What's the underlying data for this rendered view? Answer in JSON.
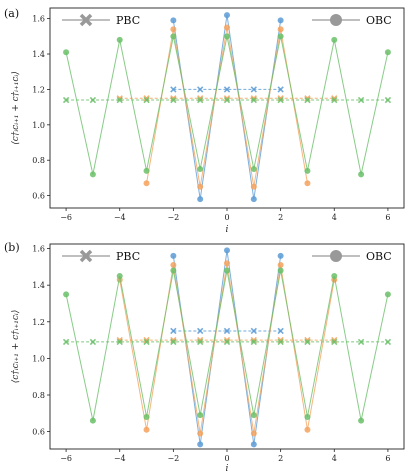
{
  "chart_data": [
    {
      "type": "line",
      "panel_label": "(a)",
      "xlabel": "i",
      "ylabel": "⟨c†ᵢcᵢ₊₁ + c†ᵢ₊₁cᵢ⟩",
      "xlim": [
        -6.6,
        6.6
      ],
      "ylim": [
        0.53,
        1.66
      ],
      "xticks": [
        -6,
        -4,
        -2,
        0,
        2,
        4,
        6
      ],
      "yticks": [
        0.6,
        0.8,
        1.0,
        1.2,
        1.4,
        1.6
      ],
      "legend": {
        "left_label": "PBC",
        "right_label": "OBC",
        "placement": "top"
      },
      "obc_series": [
        {
          "color": "#5b9bd5",
          "x": [
            -2,
            -1,
            0,
            1,
            2
          ],
          "y": [
            1.59,
            0.58,
            1.62,
            0.58,
            1.59
          ]
        },
        {
          "color": "#f5a25d",
          "x": [
            -3,
            -2,
            -1,
            0,
            1,
            2,
            3
          ],
          "y": [
            0.67,
            1.54,
            0.65,
            1.55,
            0.65,
            1.54,
            0.67
          ]
        },
        {
          "color": "#6abf69",
          "x": [
            -6,
            -5,
            -4,
            -3,
            -2,
            -1,
            0,
            1,
            2,
            3,
            4,
            5,
            6
          ],
          "y": [
            1.41,
            0.72,
            1.48,
            0.74,
            1.5,
            0.75,
            1.5,
            0.75,
            1.5,
            0.74,
            1.48,
            0.72,
            1.41
          ]
        }
      ],
      "pbc_series": [
        {
          "color": "#5b9bd5",
          "x": [
            -2,
            -1,
            0,
            1,
            2
          ],
          "y": [
            1.2,
            1.2,
            1.2,
            1.2,
            1.2
          ]
        },
        {
          "color": "#f5a25d",
          "x": [
            -4,
            -3,
            -2,
            -1,
            0,
            1,
            2,
            3,
            4
          ],
          "y": [
            1.15,
            1.15,
            1.15,
            1.15,
            1.15,
            1.15,
            1.15,
            1.15,
            1.15
          ]
        },
        {
          "color": "#6abf69",
          "x": [
            -6,
            -5,
            -4,
            -3,
            -2,
            -1,
            0,
            1,
            2,
            3,
            4,
            5,
            6
          ],
          "y": [
            1.14,
            1.14,
            1.14,
            1.14,
            1.14,
            1.14,
            1.14,
            1.14,
            1.14,
            1.14,
            1.14,
            1.14,
            1.14
          ]
        }
      ]
    },
    {
      "type": "line",
      "panel_label": "(b)",
      "xlabel": "i",
      "ylabel": "⟨c†ᵢcᵢ₊₁ + c†ᵢ₊₁cᵢ⟩",
      "xlim": [
        -6.6,
        6.6
      ],
      "ylim": [
        0.505,
        1.625
      ],
      "xticks": [
        -6,
        -4,
        -2,
        0,
        2,
        4,
        6
      ],
      "yticks": [
        0.6,
        0.8,
        1.0,
        1.2,
        1.4,
        1.6
      ],
      "legend": {
        "left_label": "PBC",
        "right_label": "OBC",
        "placement": "top"
      },
      "obc_series": [
        {
          "color": "#5b9bd5",
          "x": [
            -2,
            -1,
            0,
            1,
            2
          ],
          "y": [
            1.56,
            0.53,
            1.59,
            0.53,
            1.56
          ]
        },
        {
          "color": "#f5a25d",
          "x": [
            -4,
            -3,
            -2,
            -1,
            0,
            1,
            2,
            3,
            4
          ],
          "y": [
            1.43,
            0.61,
            1.51,
            0.59,
            1.52,
            0.59,
            1.51,
            0.61,
            1.43
          ]
        },
        {
          "color": "#6abf69",
          "x": [
            -6,
            -5,
            -4,
            -3,
            -2,
            -1,
            0,
            1,
            2,
            3,
            4,
            5,
            6
          ],
          "y": [
            1.35,
            0.66,
            1.45,
            0.68,
            1.48,
            0.69,
            1.48,
            0.69,
            1.48,
            0.68,
            1.45,
            0.66,
            1.35
          ]
        }
      ],
      "pbc_series": [
        {
          "color": "#5b9bd5",
          "x": [
            -2,
            -1,
            0,
            1,
            2
          ],
          "y": [
            1.15,
            1.15,
            1.15,
            1.15,
            1.15
          ]
        },
        {
          "color": "#f5a25d",
          "x": [
            -4,
            -3,
            -2,
            -1,
            0,
            1,
            2,
            3,
            4
          ],
          "y": [
            1.1,
            1.1,
            1.1,
            1.1,
            1.1,
            1.1,
            1.1,
            1.1,
            1.1
          ]
        },
        {
          "color": "#6abf69",
          "x": [
            -6,
            -5,
            -4,
            -3,
            -2,
            -1,
            0,
            1,
            2,
            3,
            4,
            5,
            6
          ],
          "y": [
            1.09,
            1.09,
            1.09,
            1.09,
            1.09,
            1.09,
            1.09,
            1.09,
            1.09,
            1.09,
            1.09,
            1.09,
            1.09
          ]
        }
      ]
    }
  ]
}
